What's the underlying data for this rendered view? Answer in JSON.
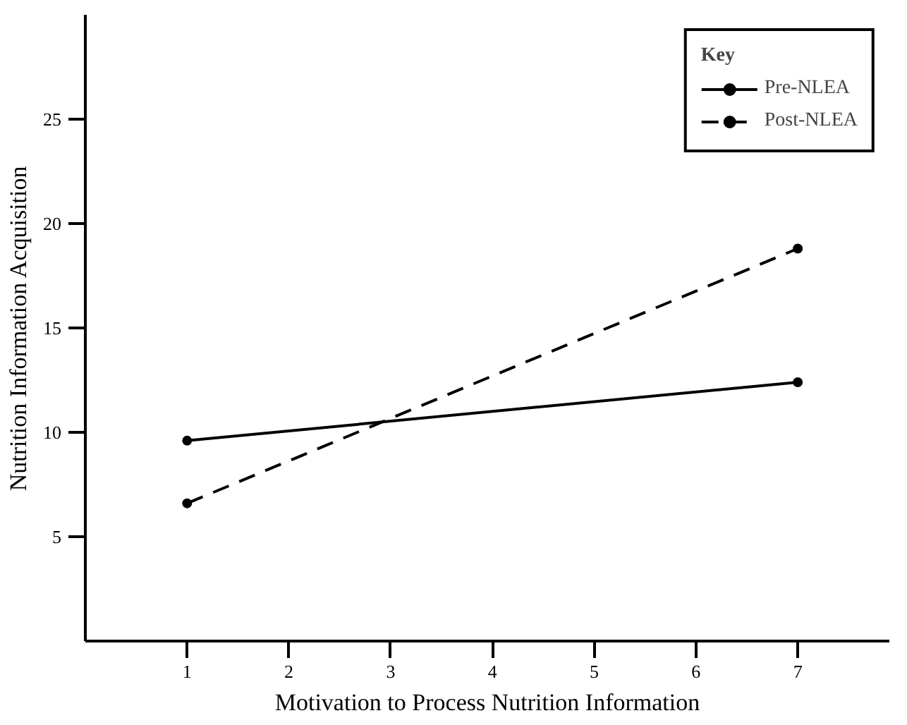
{
  "chart_data": {
    "type": "line",
    "xlabel": "Motivation to Process Nutrition Information",
    "ylabel": "Nutrition Information Acquisition",
    "x": [
      1,
      7
    ],
    "xlim": [
      0,
      7.9
    ],
    "ylim": [
      0,
      30
    ],
    "xticks": [
      1,
      2,
      3,
      4,
      5,
      6,
      7
    ],
    "yticks": [
      5,
      10,
      15,
      20,
      25
    ],
    "legend_title": "Key",
    "legend": "top right",
    "grid": false,
    "marker": "circle",
    "series": [
      {
        "name": "Pre-NLEA",
        "color": "#000000",
        "line_style": "solid",
        "values": [
          9.6,
          12.4
        ]
      },
      {
        "name": "Post-NLEA",
        "color": "#000000",
        "line_style": "dashed",
        "values": [
          6.6,
          18.8
        ]
      }
    ]
  }
}
